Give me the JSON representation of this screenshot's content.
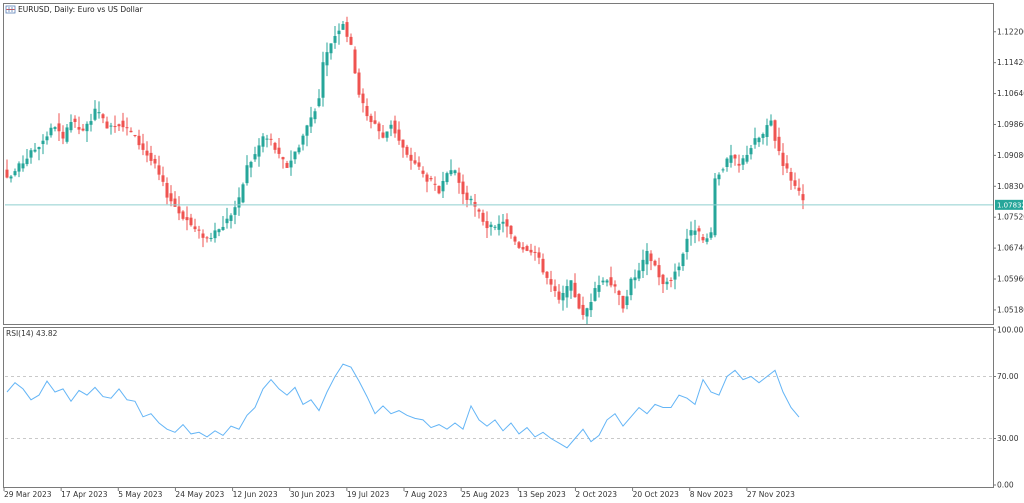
{
  "window": {
    "icon": "chart-icon",
    "title": "EURUSD, Daily:  Euro vs US Dollar"
  },
  "colors": {
    "bull": "#26a69a",
    "bear": "#ef5350",
    "current_line": "#8fcfcf",
    "current_tag": "#26a69a",
    "rsi_line": "#64b5f6",
    "level": "#c9c9c9",
    "frame": "#7a7a7a"
  },
  "chart_data": [
    {
      "type": "candlestick",
      "symbol": "EURUSD",
      "timeframe": "Daily",
      "ylim": [
        1.0485,
        1.1285
      ],
      "yticks": [
        "1.12200",
        "1.11420",
        "1.10640",
        "1.09860",
        "1.09080",
        "1.08300",
        "1.07520",
        "1.06740",
        "1.05960",
        "1.05180"
      ],
      "current_price": "1.07832",
      "x_labels": [
        "29 Mar 2023",
        "17 Apr 2023",
        "5 May 2023",
        "24 May 2023",
        "12 Jun 2023",
        "30 Jun 2023",
        "19 Jul 2023",
        "7 Aug 2023",
        "25 Aug 2023",
        "13 Sep 2023",
        "2 Oct 2023",
        "20 Oct 2023",
        "8 Nov 2023",
        "27 Nov 2023"
      ],
      "close_path": [
        [
          0,
          1.0845
        ],
        [
          6,
          1.0915
        ],
        [
          8,
          1.0935
        ],
        [
          12,
          1.0985
        ],
        [
          14,
          1.0945
        ],
        [
          16,
          1.0995
        ],
        [
          19,
          1.0965
        ],
        [
          22,
          1.102
        ],
        [
          25,
          1.0985
        ],
        [
          28,
          1.099
        ],
        [
          31,
          1.0965
        ],
        [
          34,
          1.0925
        ],
        [
          37,
          1.088
        ],
        [
          40,
          1.081
        ],
        [
          43,
          1.0765
        ],
        [
          45,
          1.0745
        ],
        [
          47,
          1.072
        ],
        [
          50,
          1.07
        ],
        [
          52,
          1.071
        ],
        [
          55,
          1.0745
        ],
        [
          58,
          1.0795
        ],
        [
          60,
          1.088
        ],
        [
          62,
          1.091
        ],
        [
          64,
          1.0955
        ],
        [
          66,
          1.0945
        ],
        [
          68,
          1.0905
        ],
        [
          70,
          1.088
        ],
        [
          73,
          1.0935
        ],
        [
          76,
          1.1005
        ],
        [
          78,
          1.105
        ],
        [
          79,
          1.1135
        ],
        [
          81,
          1.1195
        ],
        [
          83,
          1.123
        ],
        [
          84,
          1.1245
        ],
        [
          86,
          1.118
        ],
        [
          88,
          1.1065
        ],
        [
          90,
          1.1005
        ],
        [
          92,
          1.099
        ],
        [
          94,
          1.095
        ],
        [
          96,
          1.099
        ],
        [
          98,
          1.0945
        ],
        [
          100,
          1.0905
        ],
        [
          102,
          1.089
        ],
        [
          104,
          1.086
        ],
        [
          106,
          1.084
        ],
        [
          108,
          1.0815
        ],
        [
          110,
          1.0855
        ],
        [
          112,
          1.087
        ],
        [
          114,
          1.081
        ],
        [
          116,
          1.079
        ],
        [
          118,
          1.076
        ],
        [
          120,
          1.073
        ],
        [
          122,
          1.072
        ],
        [
          124,
          1.0745
        ],
        [
          126,
          1.0705
        ],
        [
          128,
          1.068
        ],
        [
          130,
          1.0675
        ],
        [
          132,
          1.0665
        ],
        [
          134,
          1.062
        ],
        [
          136,
          1.058
        ],
        [
          138,
          1.054
        ],
        [
          140,
          1.057
        ],
        [
          141,
          1.0585
        ],
        [
          142,
          1.0555
        ],
        [
          144,
          1.05
        ],
        [
          146,
          1.0545
        ],
        [
          148,
          1.0585
        ],
        [
          150,
          1.06
        ],
        [
          152,
          1.057
        ],
        [
          154,
          1.053
        ],
        [
          156,
          1.059
        ],
        [
          158,
          1.0615
        ],
        [
          160,
          1.066
        ],
        [
          162,
          1.063
        ],
        [
          164,
          1.058
        ],
        [
          166,
          1.06
        ],
        [
          168,
          1.063
        ],
        [
          170,
          1.07
        ],
        [
          172,
          1.0725
        ],
        [
          174,
          1.069
        ],
        [
          176,
          1.0705
        ],
        [
          177,
          1.085
        ],
        [
          179,
          1.088
        ],
        [
          181,
          1.0905
        ],
        [
          183,
          1.088
        ],
        [
          185,
          1.0915
        ],
        [
          187,
          1.0945
        ],
        [
          189,
          1.096
        ],
        [
          191,
          1.0995
        ],
        [
          192,
          1.095
        ],
        [
          194,
          1.089
        ],
        [
          196,
          1.085
        ],
        [
          198,
          1.081
        ],
        [
          199,
          1.079
        ]
      ]
    },
    {
      "type": "line",
      "name": "RSI(14)",
      "label": "RSI(14) 43.82",
      "ylim": [
        0,
        100
      ],
      "yticks": [
        "100.00",
        "70.00",
        "30.00",
        "0.00"
      ],
      "levels": [
        70,
        30
      ],
      "x": [
        0,
        2,
        4,
        6,
        8,
        10,
        12,
        14,
        16,
        18,
        20,
        22,
        24,
        26,
        28,
        30,
        32,
        34,
        36,
        38,
        40,
        42,
        44,
        46,
        48,
        50,
        52,
        54,
        56,
        58,
        60,
        62,
        64,
        66,
        68,
        70,
        72,
        74,
        76,
        78,
        80,
        82,
        84,
        86,
        88,
        90,
        92,
        94,
        96,
        98,
        100,
        102,
        104,
        106,
        108,
        110,
        112,
        114,
        116,
        118,
        120,
        122,
        124,
        126,
        128,
        130,
        132,
        134,
        136,
        138,
        140,
        142,
        144,
        146,
        148,
        150,
        152,
        154,
        156,
        158,
        160,
        162,
        164,
        166,
        168,
        170,
        172,
        174,
        176,
        178,
        180,
        182,
        184,
        186,
        188,
        190,
        192,
        194,
        196,
        198
      ],
      "values": [
        60,
        66,
        62,
        55,
        58,
        67,
        60,
        62,
        54,
        61,
        58,
        63,
        57,
        56,
        62,
        55,
        54,
        44,
        46,
        40,
        36,
        34,
        39,
        33,
        34,
        31,
        35,
        32,
        38,
        36,
        45,
        50,
        62,
        68,
        62,
        58,
        63,
        52,
        55,
        48,
        60,
        70,
        78,
        76,
        67,
        57,
        46,
        51,
        46,
        48,
        45,
        43,
        42,
        37,
        39,
        36,
        40,
        36,
        51,
        42,
        38,
        42,
        35,
        40,
        33,
        37,
        31,
        34,
        30,
        27,
        24,
        30,
        36,
        28,
        32,
        42,
        46,
        38,
        44,
        50,
        46,
        52,
        50,
        50,
        58,
        56,
        52,
        68,
        60,
        58,
        70,
        74,
        68,
        70,
        66,
        70,
        74,
        60,
        50,
        43.82
      ]
    }
  ]
}
